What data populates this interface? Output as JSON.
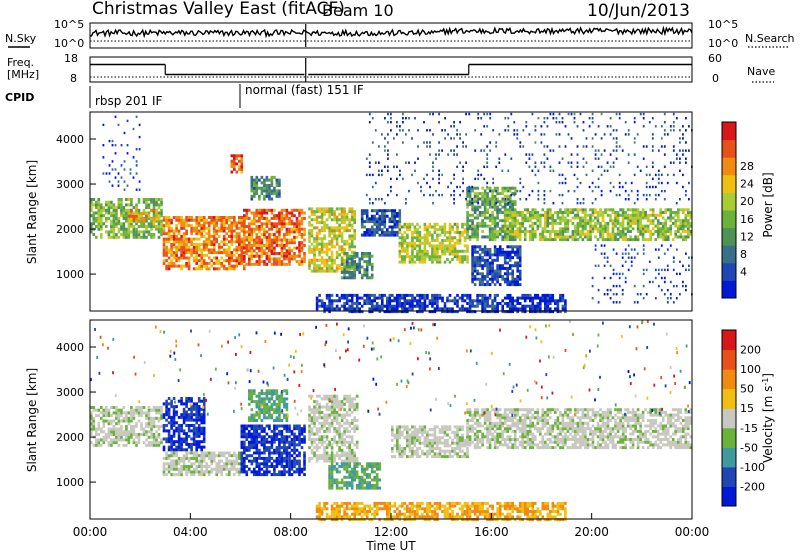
{
  "header": {
    "title": "Christmas Valley East (fitACF)",
    "beam": "Beam 10",
    "date": "10/Jun/2013"
  },
  "chart_data": [
    {
      "type": "line",
      "panel": "noise-search",
      "left_label": "N.Sky",
      "right_label": "N.Search",
      "left_ticks": [
        "10^5",
        "10^0"
      ],
      "right_ticks": [
        "10^5",
        "10^0"
      ],
      "scale": "log"
    },
    {
      "type": "line",
      "panel": "frequency-nave",
      "left_label_1": "Freq.",
      "left_label_2": "[MHz]",
      "right_label": "Nave",
      "left_ticks": [
        "18",
        "8"
      ],
      "right_ticks": [
        "60",
        "0"
      ],
      "ylim_left": [
        8,
        18
      ],
      "ylim_right": [
        0,
        60
      ],
      "freq_steps": [
        {
          "x": [
            0,
            3.0
          ],
          "y": 15.0
        },
        {
          "x": [
            3.0,
            8.55
          ],
          "y": 11.0
        },
        {
          "x": [
            8.7,
            15.1
          ],
          "y": 11.0
        },
        {
          "x": [
            15.1,
            24.0
          ],
          "y": 15.0
        }
      ],
      "nave_level": 12
    },
    {
      "type": "table",
      "panel": "cpid",
      "label": "CPID",
      "modes": [
        {
          "name": "rbsp 201 IF",
          "start": 0
        },
        {
          "name": "normal (fast) 151 IF",
          "start": 6.0
        }
      ]
    },
    {
      "type": "heatmap",
      "panel": "power",
      "ylabel": "Slant Range [km]",
      "yticks": [
        1000,
        2000,
        3000,
        4000
      ],
      "ylim": [
        180,
        4600
      ],
      "xlim": [
        0,
        24
      ],
      "colorbar": {
        "label": "Power [dB]",
        "ticks": [
          "4",
          "8",
          "12",
          "16",
          "20",
          "24",
          "28"
        ],
        "colors": [
          "#0018d8",
          "#1e46b4",
          "#3b6e8a",
          "#4e9258",
          "#6ab23a",
          "#a8cc36",
          "#f0c010",
          "#f08a10",
          "#e8501a",
          "#d81818"
        ]
      },
      "echo_regions": [
        {
          "t0": 0.0,
          "t1": 2.9,
          "r0": 1850,
          "r1": 2700,
          "level": 0.45
        },
        {
          "t0": 1.5,
          "t1": 2.8,
          "r0": 2200,
          "r1": 2500,
          "level": 0.75
        },
        {
          "t0": 2.9,
          "t1": 6.1,
          "r0": 1150,
          "r1": 2300,
          "level": 0.8
        },
        {
          "t0": 5.6,
          "t1": 6.0,
          "r0": 3300,
          "r1": 3700,
          "level": 0.85
        },
        {
          "t0": 6.1,
          "t1": 8.5,
          "r0": 1250,
          "r1": 2500,
          "level": 0.85
        },
        {
          "t0": 6.4,
          "t1": 7.5,
          "r0": 2700,
          "r1": 3200,
          "level": 0.3
        },
        {
          "t0": 8.7,
          "t1": 10.5,
          "r0": 1100,
          "r1": 2500,
          "level": 0.6
        },
        {
          "t0": 10.0,
          "t1": 11.2,
          "r0": 950,
          "r1": 1500,
          "level": 0.3
        },
        {
          "t0": 10.8,
          "t1": 12.3,
          "r0": 1900,
          "r1": 2500,
          "level": 0.12
        },
        {
          "t0": 12.3,
          "t1": 15.0,
          "r0": 1300,
          "r1": 2200,
          "level": 0.55
        },
        {
          "t0": 15.0,
          "t1": 17.0,
          "r0": 1800,
          "r1": 3000,
          "level": 0.4
        },
        {
          "t0": 16.5,
          "t1": 24.0,
          "r0": 1800,
          "r1": 2500,
          "level": 0.5
        },
        {
          "t0": 15.2,
          "t1": 17.2,
          "r0": 800,
          "r1": 1700,
          "level": 0.1
        },
        {
          "t0": 9.0,
          "t1": 19.0,
          "r0": 200,
          "r1": 600,
          "level": 0.05
        }
      ],
      "noise_regions": [
        {
          "t0": 0.5,
          "t1": 2.0,
          "r0": 2900,
          "r1": 4600,
          "level": 0.1
        },
        {
          "t0": 11.0,
          "t1": 24.0,
          "r0": 2600,
          "r1": 4600,
          "level": 0.12
        },
        {
          "t0": 20.0,
          "t1": 24.0,
          "r0": 400,
          "r1": 1700,
          "level": 0.1
        }
      ]
    },
    {
      "type": "heatmap",
      "panel": "velocity",
      "ylabel": "Slant Range [km]",
      "yticks": [
        1000,
        2000,
        3000,
        4000
      ],
      "ylim": [
        180,
        4600
      ],
      "xlim": [
        0,
        24
      ],
      "xlabel": "Time UT",
      "xticks": [
        "00:00",
        "04:00",
        "08:00",
        "12:00",
        "16:00",
        "20:00",
        "00:00"
      ],
      "colorbar": {
        "label": "Velocity [m s^-1]",
        "ticks": [
          "200",
          "100",
          "50",
          "15",
          "-15",
          "-50",
          "-100",
          "-200"
        ],
        "colors": [
          "#0018d8",
          "#1e46b4",
          "#3f9aa0",
          "#6ab23a",
          "#c8c8c0",
          "#f0c010",
          "#f08a10",
          "#e8501a",
          "#d81818"
        ]
      },
      "echo_regions": [
        {
          "t0": 0.0,
          "t1": 2.9,
          "r0": 1850,
          "r1": 2700,
          "vel": "grey"
        },
        {
          "t0": 2.9,
          "t1": 4.5,
          "r0": 1750,
          "r1": 2900,
          "vel": "blue"
        },
        {
          "t0": 2.9,
          "t1": 6.0,
          "r0": 1200,
          "r1": 1700,
          "vel": "grey"
        },
        {
          "t0": 6.0,
          "t1": 8.5,
          "r0": 1200,
          "r1": 2300,
          "vel": "blue"
        },
        {
          "t0": 6.3,
          "t1": 7.8,
          "r0": 2400,
          "r1": 3100,
          "vel": "green"
        },
        {
          "t0": 8.7,
          "t1": 10.6,
          "r0": 1500,
          "r1": 3000,
          "vel": "grey"
        },
        {
          "t0": 9.5,
          "t1": 11.5,
          "r0": 900,
          "r1": 1500,
          "vel": "green"
        },
        {
          "t0": 12.0,
          "t1": 15.0,
          "r0": 1600,
          "r1": 2300,
          "vel": "grey"
        },
        {
          "t0": 15.0,
          "t1": 24.0,
          "r0": 1800,
          "r1": 2700,
          "vel": "grey"
        },
        {
          "t0": 9.0,
          "t1": 19.0,
          "r0": 200,
          "r1": 600,
          "vel": "orange"
        }
      ]
    }
  ]
}
